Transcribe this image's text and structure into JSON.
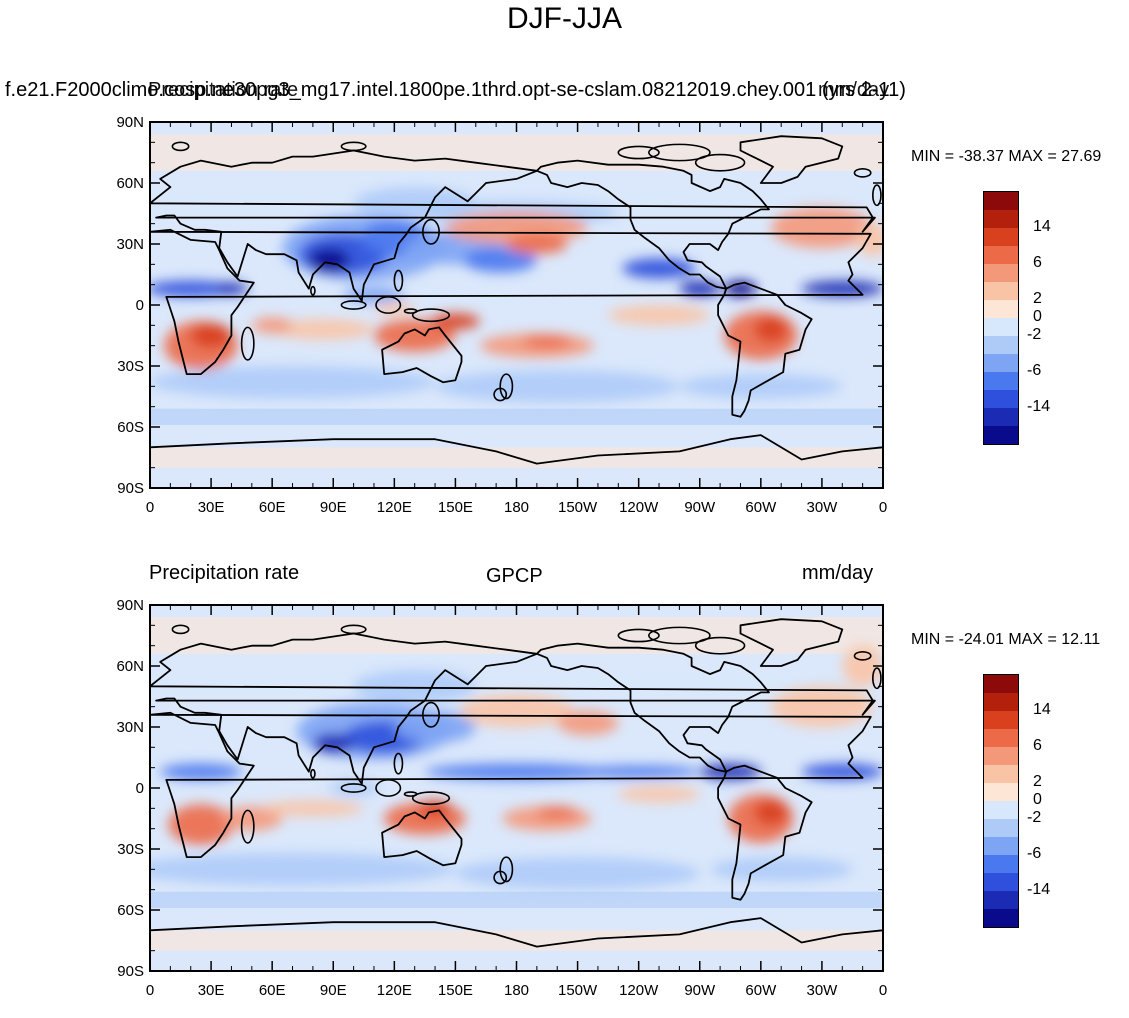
{
  "figure_title": "DJF-JJA",
  "colors": {
    "levels": [
      "#0a0a8c",
      "#1c2bb4",
      "#2e50dc",
      "#4a78ee",
      "#7ea4f4",
      "#aecbf8",
      "#d8e8fc",
      "#fde6d6",
      "#f9c4a6",
      "#f4987a",
      "#ec6a48",
      "#d8401e",
      "#b3200c",
      "#8c0a0a"
    ],
    "coast": "#000000",
    "ocean_base": "#dbe8fb"
  },
  "panels": [
    {
      "id": "model",
      "title_left": "f.e21.F2000climo.cosp.ne30pg3_mg17.intel.1800pe.1thrd.opt-se-cslam.08212019.chey.001 (yrs 2-11)",
      "overlay_left": "Precipitation rate",
      "overlay_right": "mm/day",
      "stats": "MIN = -38.37 MAX =  27.69"
    },
    {
      "id": "obs",
      "title_left": "Precipitation rate",
      "title_center": "GPCP",
      "title_right": "mm/day",
      "stats": "MIN = -24.01 MAX =  12.11"
    }
  ],
  "axes": {
    "lat_ticks": [
      "90N",
      "60N",
      "30N",
      "0",
      "30S",
      "60S",
      "90S"
    ],
    "lon_ticks": [
      "0",
      "30E",
      "60E",
      "90E",
      "120E",
      "150E",
      "180",
      "150W",
      "120W",
      "90W",
      "60W",
      "30W",
      "0"
    ]
  },
  "colorbar_labels": [
    "14",
    "6",
    "2",
    "0",
    "-2",
    "-6",
    "-14"
  ]
}
